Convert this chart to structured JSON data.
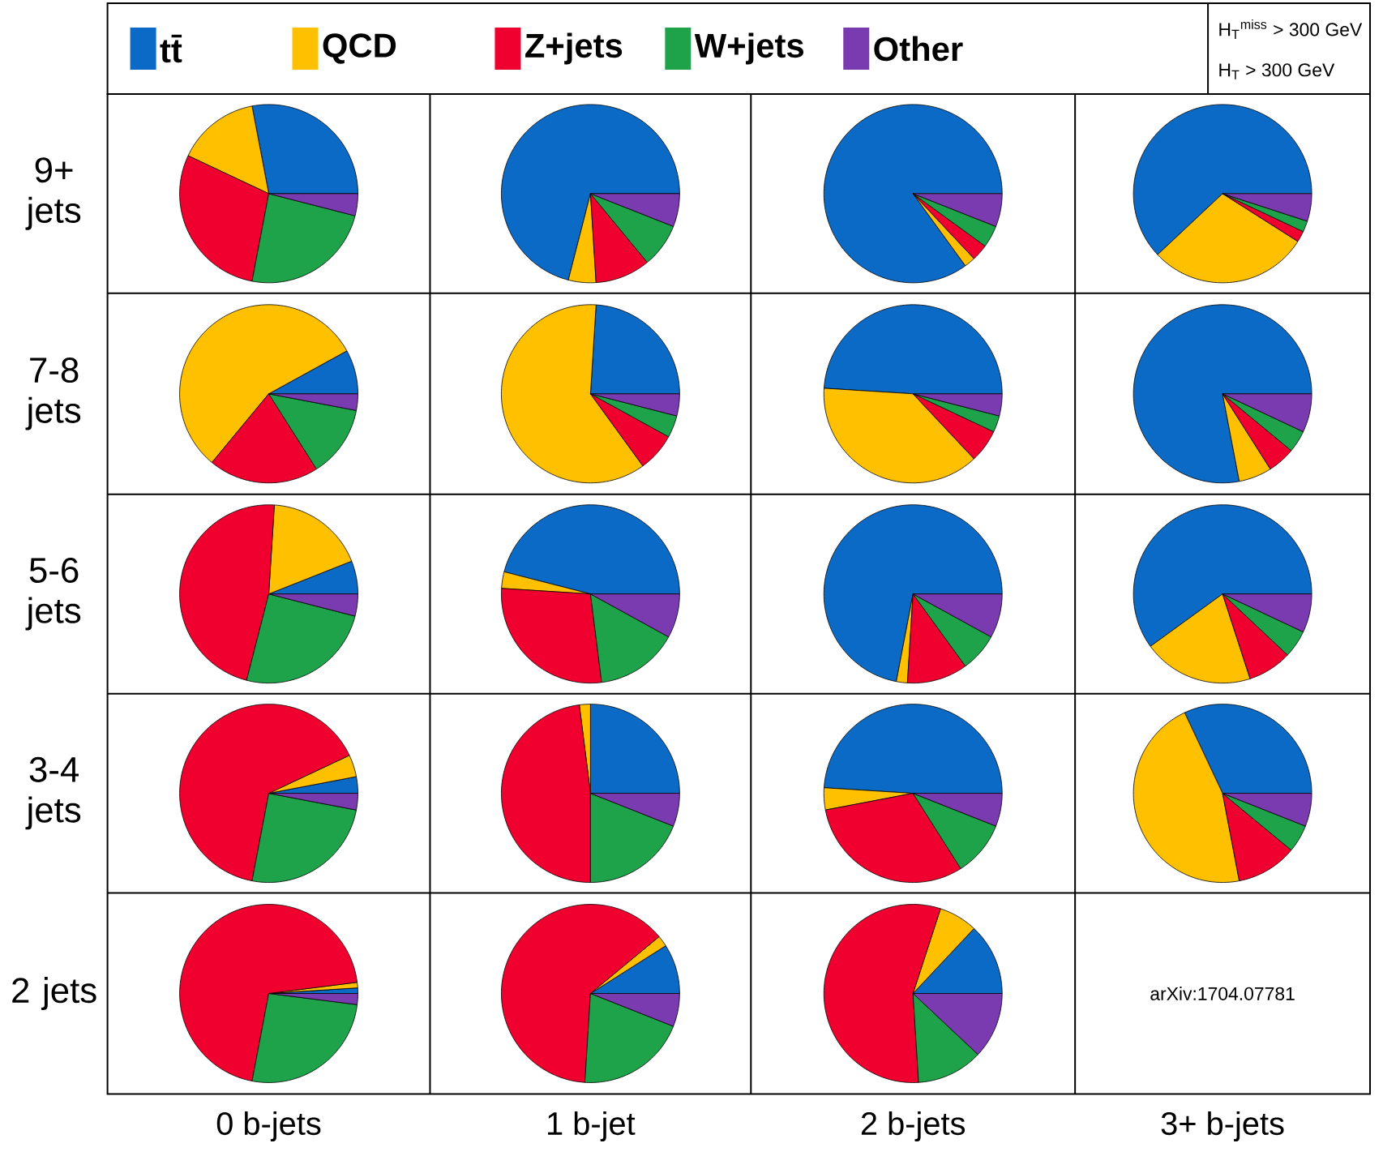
{
  "chart_data": [
    {
      "type": "pie",
      "ylabel": "9+ jets",
      "legend": "top",
      "categories": [
        "tt̄",
        "QCD",
        "Z+jets",
        "W+jets",
        "Other"
      ],
      "values": [
        28,
        15,
        29,
        24,
        4
      ],
      "colors": [
        "#0a6ac6",
        "#ffc000",
        "#f0002e",
        "#1fa34a",
        "#7b3bb0"
      ],
      "annotations": [
        "H$_{T}$$^{miss}$ > 300 GeV",
        "H$_{T}$ > 300 GeV",
        "arXiv:1704.07781"
      ]
    },
    {
      "type": "pie",
      "categories": [
        null,
        null,
        null,
        null,
        null
      ],
      "values": [
        71,
        5,
        10,
        8,
        6
      ],
      "colors": [
        "#0a6ac6",
        "#ffc000",
        "#f0002e",
        "#1fa34a",
        "#7b3bb0"
      ]
    },
    {
      "type": "pie",
      "categories": [
        null,
        null,
        null,
        null,
        null
      ],
      "values": [
        85,
        2,
        3,
        4,
        6
      ],
      "colors": [
        "#0a6ac6",
        "#ffc000",
        "#f0002e",
        "#1fa34a",
        "#7b3bb0"
      ]
    },
    {
      "type": "pie",
      "categories": [
        null,
        null,
        null,
        null,
        null
      ],
      "values": [
        62,
        29,
        2,
        2,
        5
      ],
      "colors": [
        "#0a6ac6",
        "#ffc000",
        "#f0002e",
        "#1fa34a",
        "#7b3bb0"
      ]
    },
    {
      "type": "pie",
      "ylabel": "7-8 jets",
      "categories": [
        null,
        null,
        null,
        null,
        null
      ],
      "values": [
        8,
        56,
        20,
        13,
        3
      ],
      "colors": [
        "#0a6ac6",
        "#ffc000",
        "#f0002e",
        "#1fa34a",
        "#7b3bb0"
      ]
    },
    {
      "type": "pie",
      "categories": [
        null,
        null,
        null,
        null,
        null
      ],
      "values": [
        24,
        61,
        7,
        4,
        4
      ],
      "colors": [
        "#0a6ac6",
        "#ffc000",
        "#f0002e",
        "#1fa34a",
        "#7b3bb0"
      ]
    },
    {
      "type": "pie",
      "categories": [
        null,
        null,
        null,
        null,
        null
      ],
      "values": [
        49,
        38,
        6,
        3,
        4
      ],
      "colors": [
        "#0a6ac6",
        "#ffc000",
        "#f0002e",
        "#1fa34a",
        "#7b3bb0"
      ]
    },
    {
      "type": "pie",
      "categories": [
        null,
        null,
        null,
        null,
        null
      ],
      "values": [
        78,
        6,
        5,
        4,
        7
      ],
      "colors": [
        "#0a6ac6",
        "#ffc000",
        "#f0002e",
        "#1fa34a",
        "#7b3bb0"
      ]
    },
    {
      "type": "pie",
      "ylabel": "5-6 jets",
      "categories": [
        null,
        null,
        null,
        null,
        null
      ],
      "values": [
        6,
        18,
        47,
        25,
        4
      ],
      "colors": [
        "#0a6ac6",
        "#ffc000",
        "#f0002e",
        "#1fa34a",
        "#7b3bb0"
      ]
    },
    {
      "type": "pie",
      "categories": [
        null,
        null,
        null,
        null,
        null
      ],
      "values": [
        46,
        3,
        28,
        15,
        8
      ],
      "colors": [
        "#0a6ac6",
        "#ffc000",
        "#f0002e",
        "#1fa34a",
        "#7b3bb0"
      ]
    },
    {
      "type": "pie",
      "categories": [
        null,
        null,
        null,
        null,
        null
      ],
      "values": [
        72,
        2,
        11,
        7,
        8
      ],
      "colors": [
        "#0a6ac6",
        "#ffc000",
        "#f0002e",
        "#1fa34a",
        "#7b3bb0"
      ]
    },
    {
      "type": "pie",
      "categories": [
        null,
        null,
        null,
        null,
        null
      ],
      "values": [
        60,
        20,
        8,
        5,
        7
      ],
      "colors": [
        "#0a6ac6",
        "#ffc000",
        "#f0002e",
        "#1fa34a",
        "#7b3bb0"
      ]
    },
    {
      "type": "pie",
      "ylabel": "3-4 jets",
      "categories": [
        null,
        null,
        null,
        null,
        null
      ],
      "values": [
        3,
        4,
        65,
        25,
        3
      ],
      "colors": [
        "#0a6ac6",
        "#ffc000",
        "#f0002e",
        "#1fa34a",
        "#7b3bb0"
      ]
    },
    {
      "type": "pie",
      "categories": [
        null,
        null,
        null,
        null,
        null
      ],
      "values": [
        25,
        2,
        48,
        19,
        6
      ],
      "colors": [
        "#0a6ac6",
        "#ffc000",
        "#f0002e",
        "#1fa34a",
        "#7b3bb0"
      ]
    },
    {
      "type": "pie",
      "categories": [
        null,
        null,
        null,
        null,
        null
      ],
      "values": [
        49,
        4,
        31,
        10,
        6
      ],
      "colors": [
        "#0a6ac6",
        "#ffc000",
        "#f0002e",
        "#1fa34a",
        "#7b3bb0"
      ]
    },
    {
      "type": "pie",
      "xlabel": "3+ b-jets",
      "categories": [
        null,
        null,
        null,
        null,
        null
      ],
      "values": [
        32,
        46,
        11,
        5,
        6
      ],
      "colors": [
        "#0a6ac6",
        "#ffc000",
        "#f0002e",
        "#1fa34a",
        "#7b3bb0"
      ]
    },
    {
      "type": "pie",
      "ylabel": "2 jets",
      "xlabel": "0 b-jets",
      "categories": [
        null,
        null,
        null,
        null,
        null
      ],
      "values": [
        1,
        1,
        70,
        26,
        2
      ],
      "colors": [
        "#0a6ac6",
        "#ffc000",
        "#f0002e",
        "#1fa34a",
        "#7b3bb0"
      ]
    },
    {
      "type": "pie",
      "xlabel": "1 b-jet",
      "categories": [
        null,
        null,
        null,
        null,
        null
      ],
      "values": [
        9,
        2,
        63,
        20,
        6
      ],
      "colors": [
        "#0a6ac6",
        "#ffc000",
        "#f0002e",
        "#1fa34a",
        "#7b3bb0"
      ]
    },
    {
      "type": "pie",
      "xlabel": "2 b-jets",
      "categories": [
        null,
        null,
        null,
        null,
        null
      ],
      "values": [
        13,
        7,
        56,
        12,
        12
      ],
      "colors": [
        "#0a6ac6",
        "#ffc000",
        "#f0002e",
        "#1fa34a",
        "#7b3bb0"
      ]
    }
  ]
}
